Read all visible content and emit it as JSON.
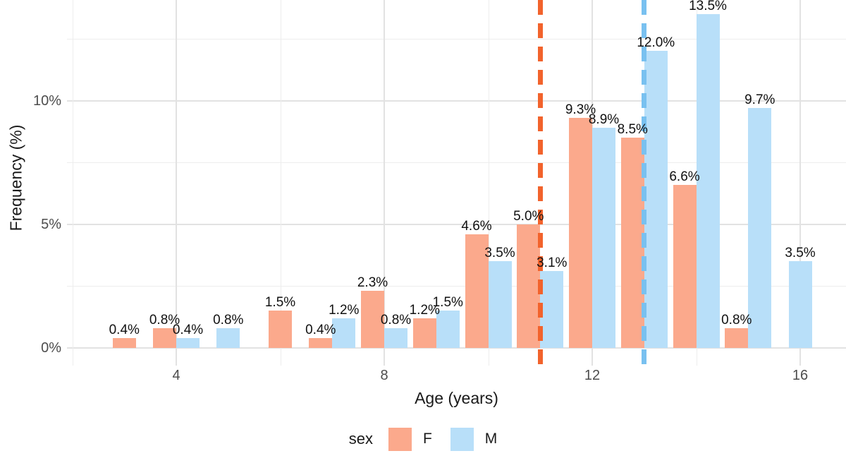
{
  "chart_data": {
    "type": "bar",
    "title": "",
    "xlabel": "Age (years)",
    "ylabel": "Frequency (%)",
    "x_ticks": [
      {
        "age": 4,
        "label": "4"
      },
      {
        "age": 8,
        "label": "8"
      },
      {
        "age": 12,
        "label": "12"
      },
      {
        "age": 16,
        "label": "16"
      }
    ],
    "x_minor_ticks": [
      2,
      6,
      10,
      14
    ],
    "y_ticks": [
      {
        "value": 0,
        "label": "0%"
      },
      {
        "value": 5,
        "label": "5%"
      },
      {
        "value": 10,
        "label": "10%"
      }
    ],
    "y_minor_ticks": [
      2.5,
      7.5,
      12.5
    ],
    "ylim": [
      0,
      14
    ],
    "grid": true,
    "legend_position": "bottom",
    "legend": {
      "title": "sex",
      "entries": [
        {
          "label": "F",
          "color": "#FBA98C"
        },
        {
          "label": "M",
          "color": "#B8DFF9"
        }
      ]
    },
    "series": [
      {
        "name": "F",
        "color": "#FBA98C",
        "points": [
          {
            "age": 3,
            "value": 0.4,
            "label": "0.4%",
            "single": true
          },
          {
            "age": 4,
            "value": 0.8,
            "label": "0.8%"
          },
          {
            "age": 6,
            "value": 1.5,
            "label": "1.5%",
            "single": true
          },
          {
            "age": 7,
            "value": 0.4,
            "label": "0.4%"
          },
          {
            "age": 8,
            "value": 2.3,
            "label": "2.3%"
          },
          {
            "age": 9,
            "value": 1.2,
            "label": "1.2%"
          },
          {
            "age": 10,
            "value": 4.6,
            "label": "4.6%"
          },
          {
            "age": 11,
            "value": 5.0,
            "label": "5.0%"
          },
          {
            "age": 12,
            "value": 9.3,
            "label": "9.3%"
          },
          {
            "age": 13,
            "value": 8.5,
            "label": "8.5%"
          },
          {
            "age": 14,
            "value": 6.6,
            "label": "6.6%"
          },
          {
            "age": 15,
            "value": 0.8,
            "label": "0.8%"
          }
        ]
      },
      {
        "name": "M",
        "color": "#B8DFF9",
        "points": [
          {
            "age": 4,
            "value": 0.4,
            "label": "0.4%"
          },
          {
            "age": 5,
            "value": 0.8,
            "label": "0.8%",
            "single": true
          },
          {
            "age": 7,
            "value": 1.2,
            "label": "1.2%"
          },
          {
            "age": 8,
            "value": 0.8,
            "label": "0.8%"
          },
          {
            "age": 9,
            "value": 1.5,
            "label": "1.5%"
          },
          {
            "age": 10,
            "value": 3.5,
            "label": "3.5%"
          },
          {
            "age": 11,
            "value": 3.1,
            "label": "3.1%"
          },
          {
            "age": 12,
            "value": 8.9,
            "label": "8.9%"
          },
          {
            "age": 13,
            "value": 12.0,
            "label": "12.0%"
          },
          {
            "age": 14,
            "value": 13.5,
            "label": "13.5%"
          },
          {
            "age": 15,
            "value": 9.7,
            "label": "9.7%"
          },
          {
            "age": 16,
            "value": 3.5,
            "label": "3.5%",
            "single": true
          }
        ]
      }
    ],
    "vlines": [
      {
        "age": 11.0,
        "color": "#F2632C",
        "style": "dashed",
        "series": "F"
      },
      {
        "age": 13.0,
        "color": "#79C1F0",
        "style": "dashed",
        "series": "M"
      }
    ],
    "colors": {
      "background": "#FFFFFF",
      "grid_major": "#E2E2E2",
      "grid_minor": "#EDEDED",
      "tick_text": "#4D4D4D",
      "title_text": "#1A1A1A",
      "bar_label_text": "#111111"
    }
  }
}
